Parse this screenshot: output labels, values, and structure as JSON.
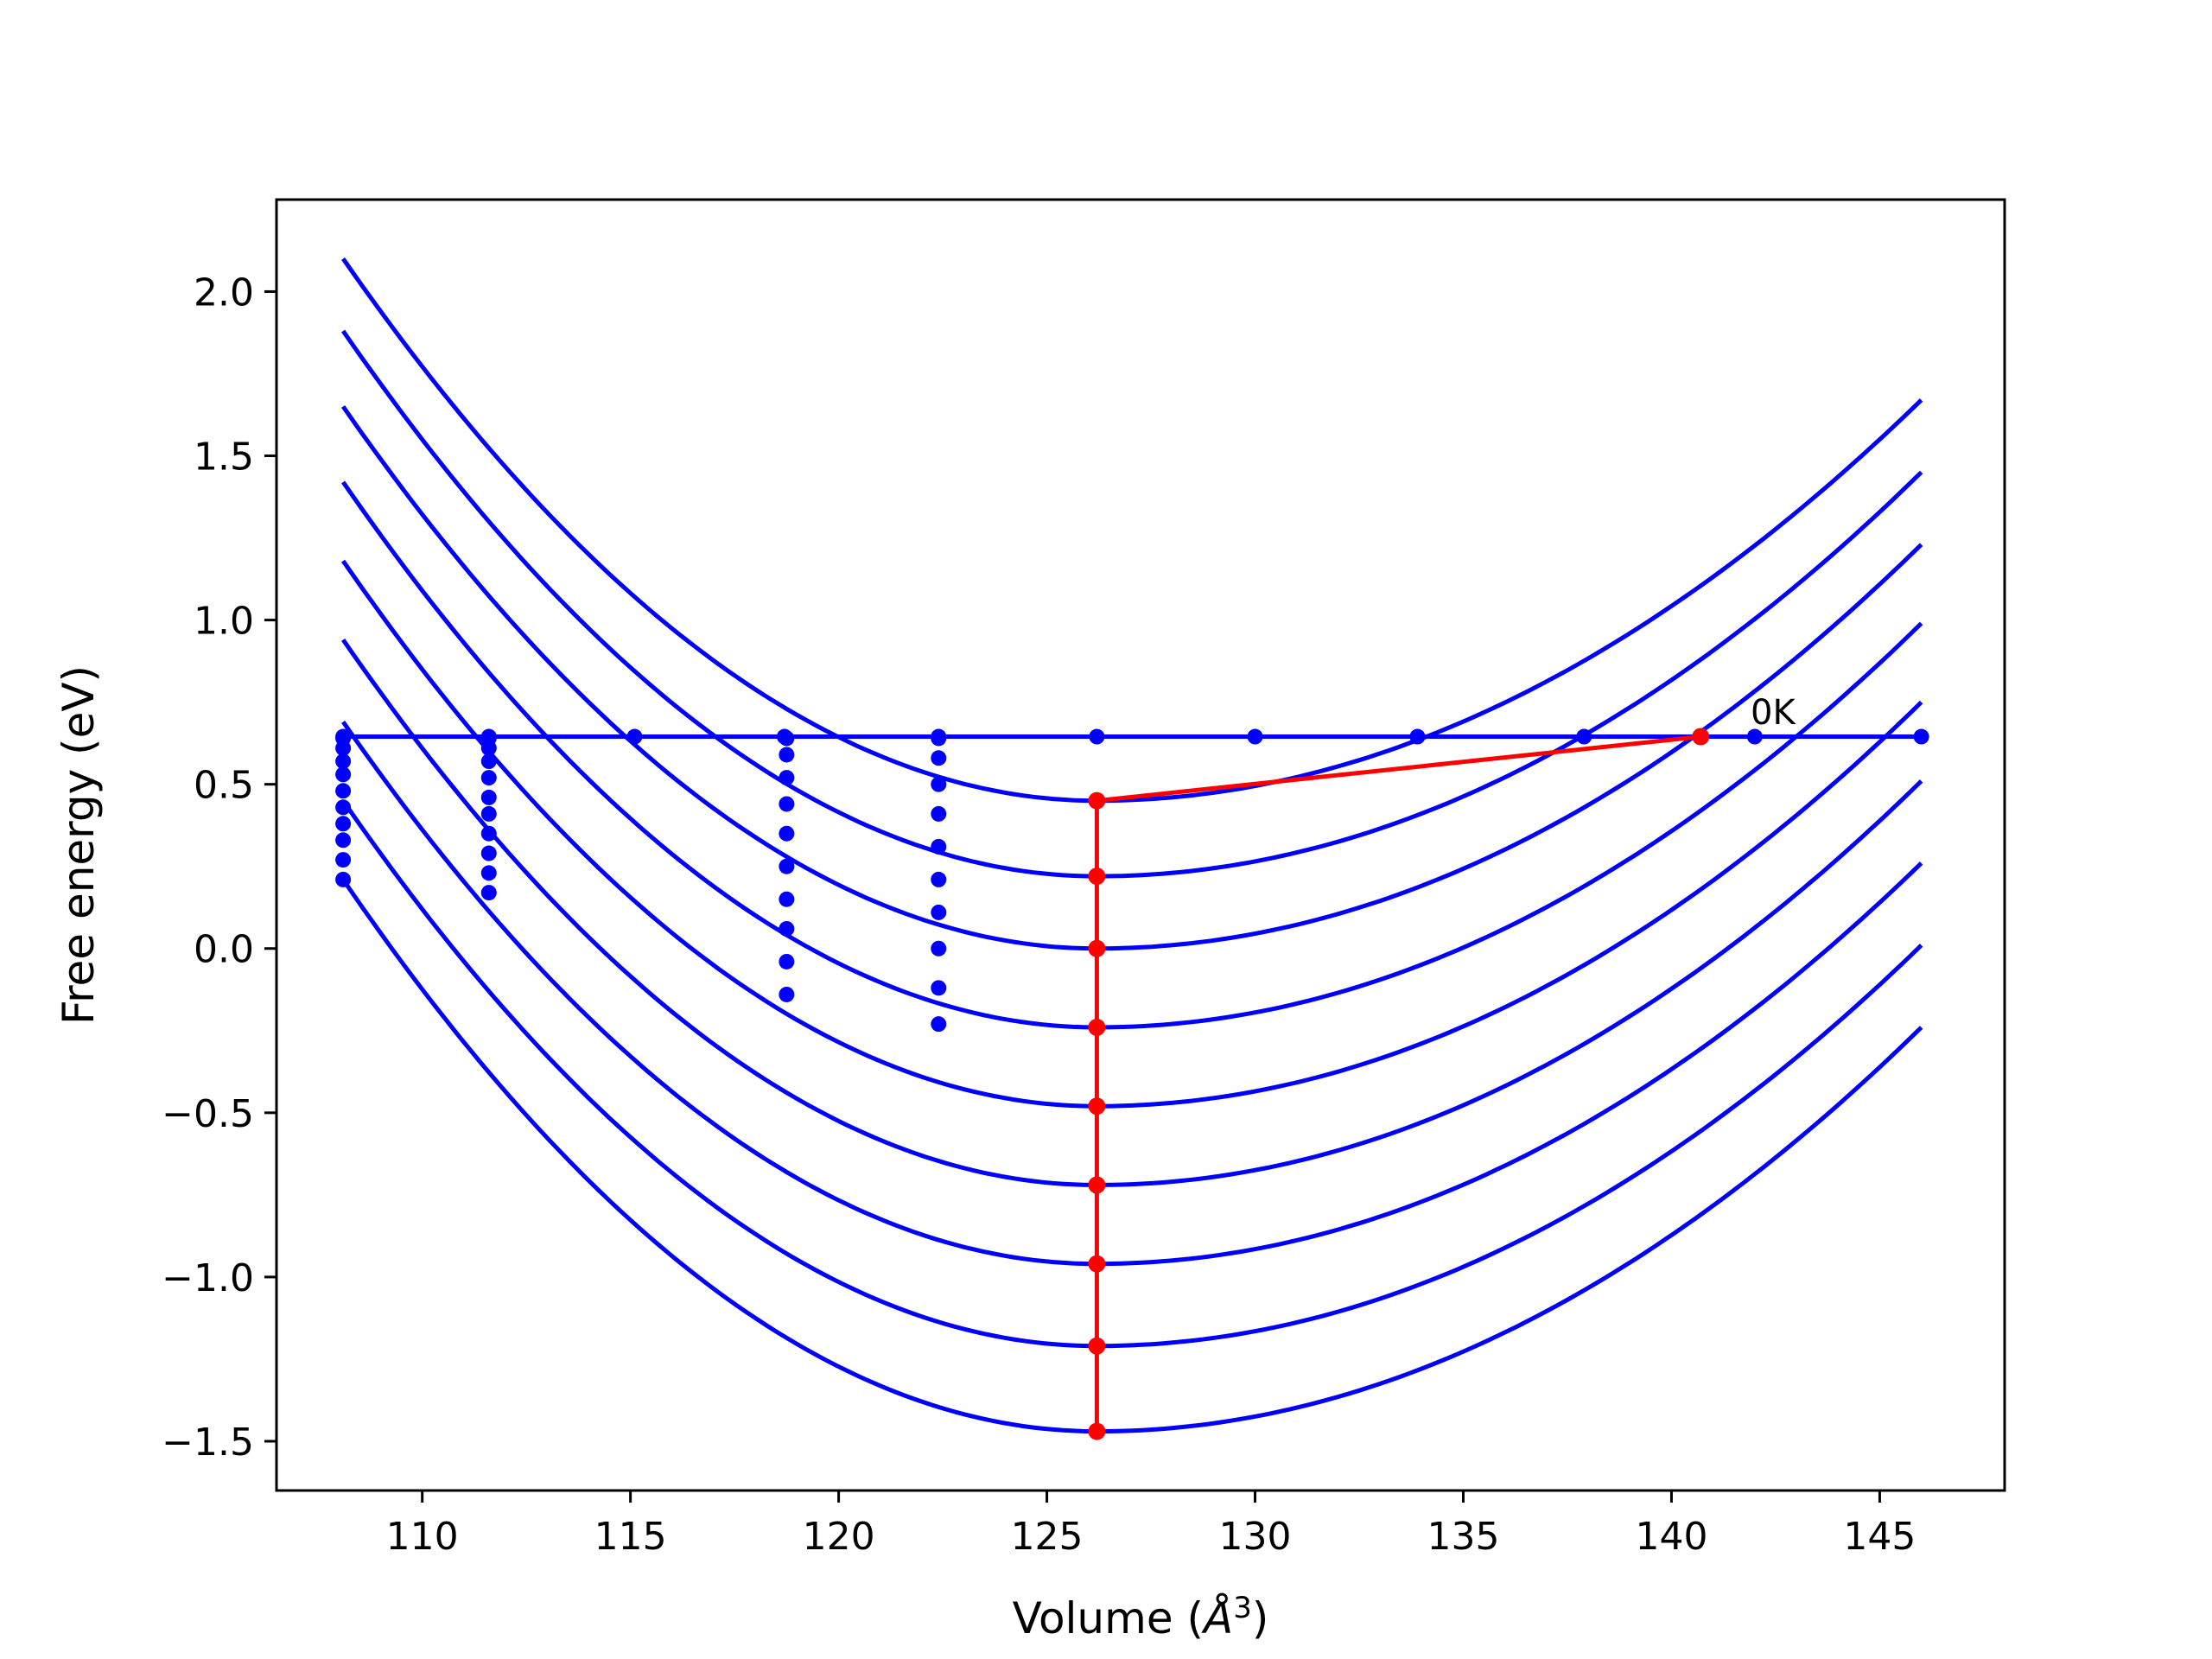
{
  "chart_data": {
    "type": "line",
    "title": "",
    "xlabel": "Volume (",
    "xlabel_symbol": "Å",
    "xlabel_sup": "3",
    "xlabel_close": ")",
    "ylabel": "Free energy (eV)",
    "xlim": [
      106.5,
      148.0
    ],
    "ylim": [
      -1.65,
      2.28
    ],
    "xticks": [
      110,
      115,
      120,
      125,
      130,
      135,
      140,
      145
    ],
    "xtick_labels": [
      "110",
      "115",
      "120",
      "125",
      "130",
      "135",
      "140",
      "145"
    ],
    "yticks": [
      -1.5,
      -1.0,
      -0.5,
      0.0,
      0.5,
      1.0,
      1.5,
      2.0
    ],
    "ytick_labels": [
      "−1.5",
      "−1.0",
      "−0.5",
      "0.0",
      "0.5",
      "1.0",
      "1.5",
      "2.0"
    ],
    "grid": false,
    "curve_x_range": [
      108.1,
      146.0
    ],
    "curves": {
      "color": "#0000ff",
      "minimum_x": 126.2,
      "series": [
        {
          "min_y": 0.45,
          "left_y": 2.1,
          "right_y": 1.67
        },
        {
          "min_y": 0.22,
          "left_y": 1.88,
          "right_y": 1.45
        },
        {
          "min_y": 0.0,
          "left_y": 1.65,
          "right_y": 1.23
        },
        {
          "min_y": -0.24,
          "left_y": 1.42,
          "right_y": 0.99
        },
        {
          "min_y": -0.48,
          "left_y": 1.18,
          "right_y": 0.75
        },
        {
          "min_y": -0.72,
          "left_y": 0.94,
          "right_y": 0.51
        },
        {
          "min_y": -0.96,
          "left_y": 0.69,
          "right_y": 0.26
        },
        {
          "min_y": -1.21,
          "left_y": 0.45,
          "right_y": 0.01
        },
        {
          "min_y": -1.47,
          "left_y": 0.21,
          "right_y": -0.24
        }
      ]
    },
    "horizontal_line": {
      "color": "#0000ff",
      "y": 0.645,
      "x_start": 108.1,
      "x_end": 146.0,
      "points_x": [
        108.1,
        111.6,
        115.1,
        118.7,
        122.4,
        126.2,
        130.0,
        133.9,
        137.9,
        142.0,
        146.0
      ]
    },
    "dot_columns": {
      "color": "#0000ff",
      "columns": [
        {
          "x": 108.1,
          "y": [
            0.64,
            0.61,
            0.57,
            0.53,
            0.48,
            0.43,
            0.38,
            0.33,
            0.27,
            0.21
          ]
        },
        {
          "x": 111.6,
          "y": [
            0.64,
            0.61,
            0.57,
            0.52,
            0.46,
            0.41,
            0.35,
            0.29,
            0.23,
            0.17
          ]
        },
        {
          "x": 118.75,
          "y": [
            0.64,
            0.59,
            0.52,
            0.44,
            0.35,
            0.25,
            0.15,
            0.06,
            -0.04,
            -0.14
          ]
        },
        {
          "x": 122.4,
          "y": [
            0.64,
            0.58,
            0.5,
            0.41,
            0.31,
            0.21,
            0.11,
            0.0,
            -0.12,
            -0.23
          ]
        }
      ]
    },
    "red_path": {
      "color": "#ff0000",
      "vertical_x": 126.2,
      "vertical_points_y": [
        0.45,
        0.22,
        0.0,
        -0.24,
        -0.48,
        -0.72,
        -0.96,
        -1.21,
        -1.47
      ],
      "diagonal_to": {
        "x": 140.7,
        "y": 0.645
      }
    },
    "annotations": [
      {
        "text": "0K",
        "x": 141.9,
        "y": 0.72
      }
    ]
  }
}
